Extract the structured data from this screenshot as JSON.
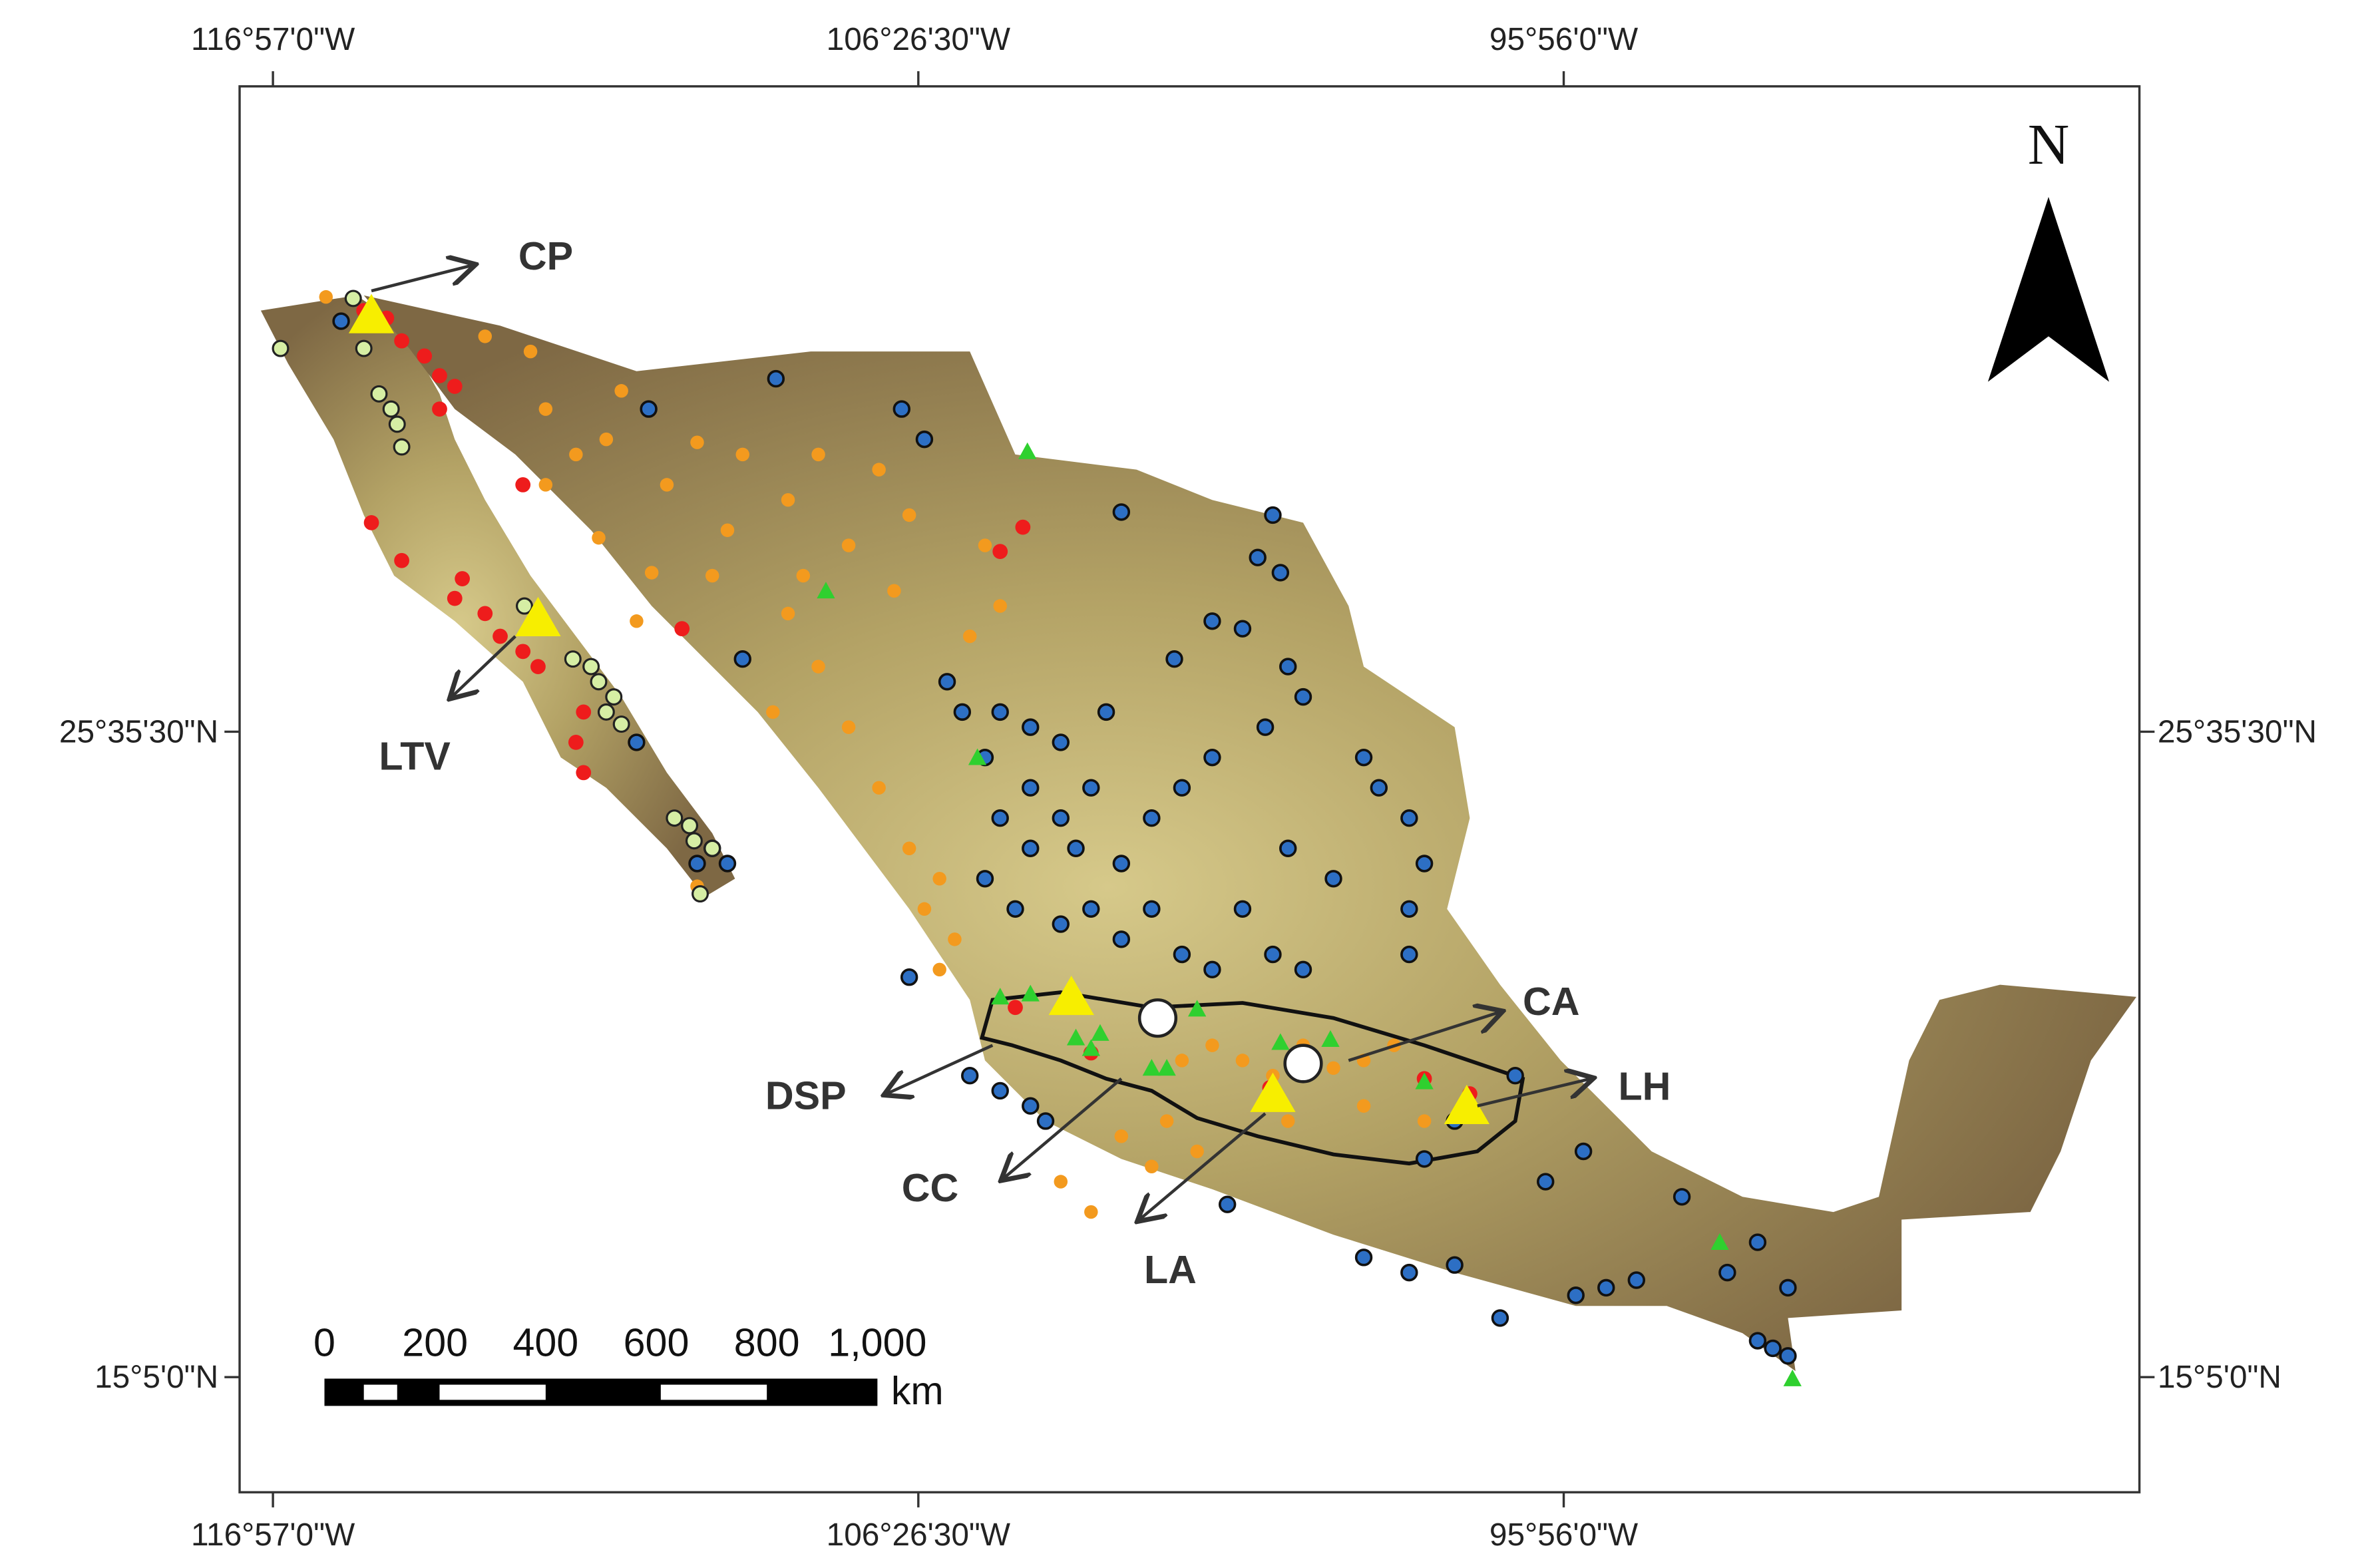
{
  "map": {
    "top_ticks": [
      "116°57'0\"W",
      "106°26'30\"W",
      "95°56'0\"W"
    ],
    "bottom_ticks": [
      "116°57'0\"W",
      "106°26'30\"W",
      "95°56'0\"W"
    ],
    "left_ticks": [
      "25°35'30\"N",
      "15°5'0\"N"
    ],
    "right_ticks": [
      "25°35'30\"N",
      "15°5'0\"N"
    ],
    "north": "N",
    "labels": {
      "cp": "CP",
      "ltv": "LTV",
      "dsp": "DSP",
      "cc": "CC",
      "la": "LA",
      "ca": "CA",
      "lh": "LH"
    },
    "scale_bar": {
      "labels": [
        "0",
        "200",
        "400",
        "600",
        "800",
        "1,000"
      ],
      "unit": "km"
    }
  }
}
